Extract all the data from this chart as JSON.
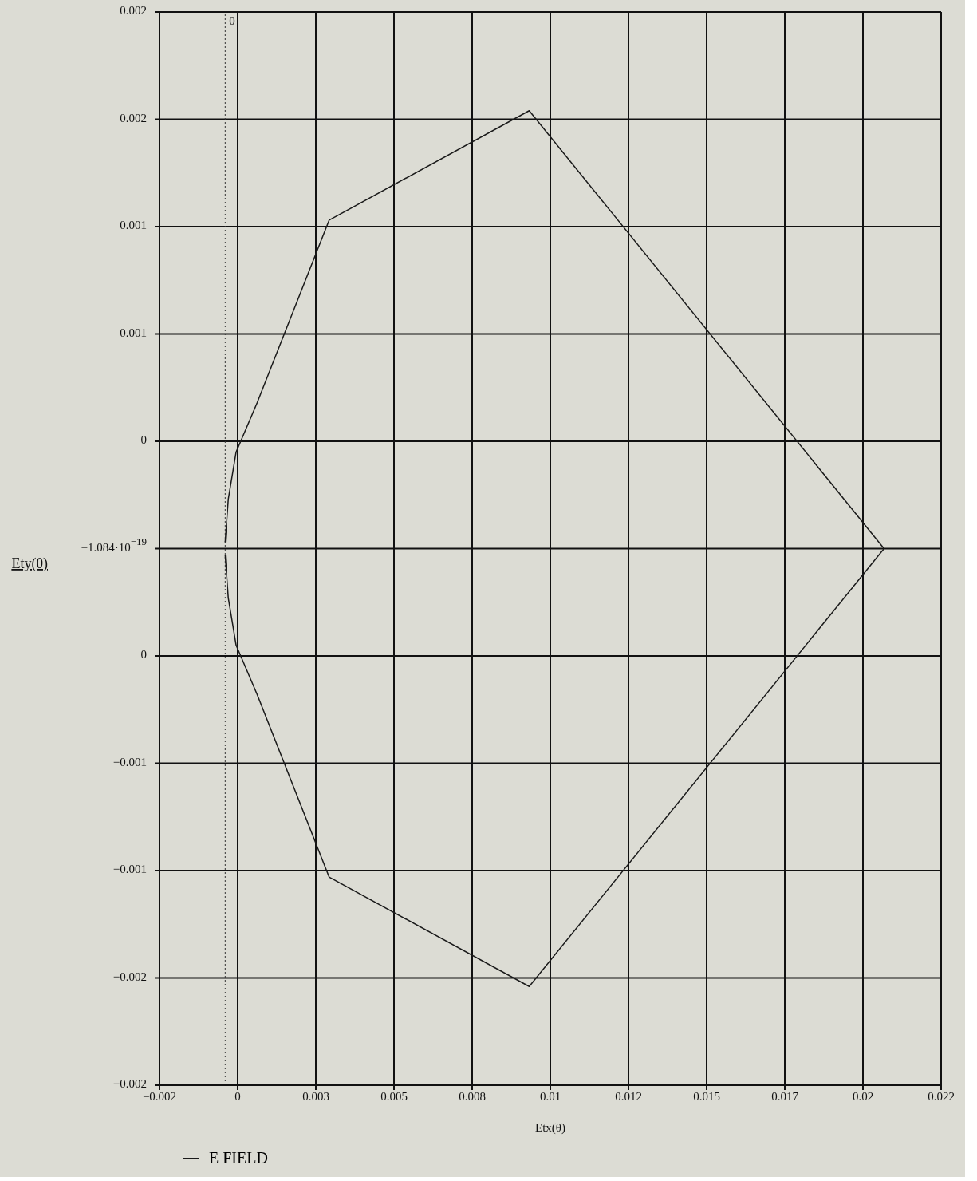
{
  "chart_data": {
    "type": "line",
    "xlabel": "Etx(θ)",
    "ylabel": "Ety(θ)",
    "x": [
      -0.0004,
      -0.0003,
      -5e-05,
      0.000625,
      0.002925,
      0.009325,
      0.020675,
      0.009325,
      0.002925,
      0.000625,
      -5e-05,
      -0.0003,
      -0.0004
    ],
    "series": [
      {
        "name": "E FIELD",
        "color": "#1a1a1a",
        "values": [
          -3e-05,
          -0.00023,
          -0.00045,
          -0.00068,
          -0.00153,
          -0.00204,
          0,
          0.00204,
          0.00153,
          0.00068,
          0.00045,
          0.00023,
          3e-05
        ]
      }
    ],
    "xlim": [
      -0.0025,
      0.0225
    ],
    "xticks": [
      {
        "value": -0.0025,
        "label": "−0.002"
      },
      0,
      {
        "value": 0.0025,
        "label": "0.003"
      },
      0.005,
      {
        "value": 0.0075,
        "label": "0.008"
      },
      0.01,
      {
        "value": 0.0125,
        "label": "0.012"
      },
      0.015,
      {
        "value": 0.0175,
        "label": "0.017"
      },
      0.02,
      {
        "value": 0.0225,
        "label": "0.022"
      }
    ],
    "ylim": [
      -0.0025,
      0.0025
    ],
    "yticks": [
      {
        "value": -0.0025,
        "label": "−0.002"
      },
      {
        "value": -0.002,
        "label": "−0.002"
      },
      {
        "value": -0.0015,
        "label": "−0.001"
      },
      {
        "value": -0.001,
        "label": "−0.001"
      },
      {
        "value": -0.0005,
        "label": "0"
      },
      {
        "value": 0,
        "label": "−1.084·10$^{−19}$"
      },
      {
        "value": 0.0005,
        "label": "0"
      },
      {
        "value": 0.001,
        "label": "0.001"
      },
      {
        "value": 0.0015,
        "label": "0.001"
      },
      {
        "value": 0.002,
        "label": "0.002"
      },
      {
        "value": 0.0025,
        "label": "0.002"
      }
    ],
    "ref_lines": [
      {
        "axis": "x",
        "value": -0.0004,
        "label": "0",
        "line_style": "dotted",
        "color": "#333333"
      }
    ],
    "grid": true,
    "legend": "bottom left",
    "marker": "none",
    "line_style": "solid"
  }
}
